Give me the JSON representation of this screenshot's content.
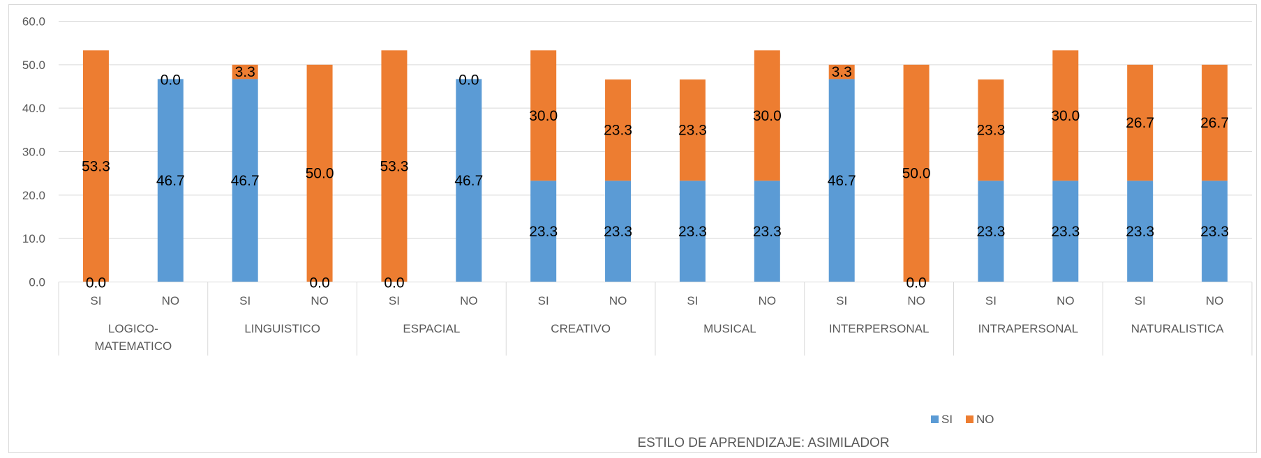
{
  "chart_data": {
    "type": "bar",
    "stacked": true,
    "title": "",
    "xlabel": "",
    "ylabel": "",
    "ylim": [
      0,
      60
    ],
    "yticks": [
      "0.0",
      "10.0",
      "20.0",
      "30.0",
      "40.0",
      "50.0",
      "60.0"
    ],
    "grid": true,
    "legend_position": "bottom-right",
    "groups": [
      "LOGICO-\nMATEMATICO",
      "LINGUISTICO",
      "ESPACIAL",
      "CREATIVO",
      "MUSICAL",
      "INTERPERSONAL",
      "INTRAPERSONAL",
      "NATURALISTICA"
    ],
    "categories": [
      "SI",
      "NO",
      "SI",
      "NO",
      "SI",
      "NO",
      "SI",
      "NO",
      "SI",
      "NO",
      "SI",
      "NO",
      "SI",
      "NO",
      "SI",
      "NO"
    ],
    "series": [
      {
        "name": "SI",
        "color": "#5b9bd5",
        "values": [
          0.0,
          46.7,
          46.7,
          0.0,
          0.0,
          46.7,
          23.3,
          23.3,
          23.3,
          23.3,
          46.7,
          0.0,
          23.3,
          23.3,
          23.3,
          23.3
        ]
      },
      {
        "name": "NO",
        "color": "#ed7d31",
        "values": [
          53.3,
          0.0,
          3.3,
          50.0,
          53.3,
          0.0,
          30.0,
          23.3,
          23.3,
          30.0,
          3.3,
          50.0,
          23.3,
          30.0,
          26.7,
          26.7
        ]
      }
    ],
    "annotation": "ESTILO DE APRENDIZAJE: ASIMILADOR"
  }
}
